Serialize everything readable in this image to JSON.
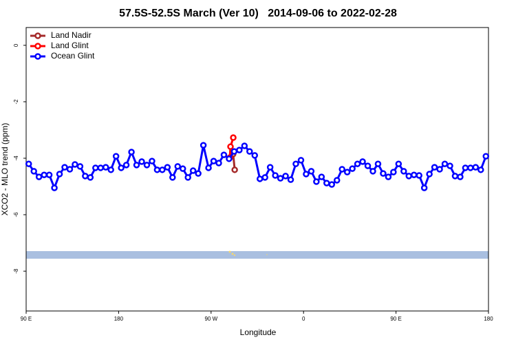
{
  "chart_data": {
    "type": "line",
    "title": "57.5S-52.5S March (Ver 10)   2014-09-06 to 2022-02-28",
    "x_label": "Longitude",
    "y_label": "XCO2 - MLO trend (ppm)",
    "xlim": [
      90,
      540
    ],
    "ylim": [
      -9.41,
      0.63
    ],
    "xticks": [
      {
        "value": 90,
        "label": "90 E"
      },
      {
        "value": 180,
        "label": "180"
      },
      {
        "value": 270,
        "label": "90 W"
      },
      {
        "value": 360,
        "label": "0"
      },
      {
        "value": 450,
        "label": "90 E"
      },
      {
        "value": 540,
        "label": "180"
      }
    ],
    "yticks": [
      0,
      -2,
      -4,
      -6,
      -8
    ],
    "legend": "top-left",
    "series": [
      {
        "name": "Land Nadir",
        "color": "#a52a2a",
        "x": [
          291.5,
          293
        ],
        "values": [
          -3.85,
          -4.41
        ]
      },
      {
        "name": "Land Glint",
        "color": "#ff0000",
        "x": [
          288.2,
          288.9,
          291.6
        ],
        "values": [
          -3.98,
          -3.59,
          -3.27
        ]
      },
      {
        "name": "Ocean Glint",
        "color": "#0000ff",
        "x": [
          92.5,
          97.5,
          102.5,
          107.5,
          112.5,
          117.5,
          122.5,
          127.5,
          132.5,
          137.5,
          142.5,
          147.5,
          152.5,
          157.5,
          162.5,
          167.5,
          172.5,
          177.5,
          182.5,
          187.5,
          192.5,
          197.5,
          202.5,
          207.5,
          212.5,
          217.5,
          222.5,
          227.5,
          232.5,
          237.5,
          242.5,
          247.5,
          252.5,
          257.5,
          262.5,
          267.5,
          272.5,
          277.5,
          282.5,
          287.5,
          292.5,
          297.5,
          302.5,
          307.5,
          312.5,
          317.5,
          322.5,
          327.5,
          332.5,
          337.5,
          342.5,
          347.5,
          352.5,
          357.5,
          362.5,
          367.5,
          372.5,
          377.5,
          382.5,
          387.5,
          392.5,
          397.5,
          402.5,
          407.5,
          412.5,
          417.5,
          422.5,
          427.5,
          432.5,
          437.5,
          442.5,
          447.5,
          452.5,
          457.5,
          462.5,
          467.5,
          472.5,
          477.5,
          482.5,
          487.5,
          492.5,
          497.5,
          502.5,
          507.5,
          512.5,
          517.5,
          522.5,
          527.5,
          532.5,
          537.5
        ],
        "values": [
          -4.2,
          -4.46,
          -4.66,
          -4.59,
          -4.59,
          -5.05,
          -4.56,
          -4.32,
          -4.39,
          -4.22,
          -4.29,
          -4.63,
          -4.68,
          -4.34,
          -4.34,
          -4.32,
          -4.41,
          -3.93,
          -4.34,
          -4.24,
          -3.78,
          -4.24,
          -4.12,
          -4.24,
          -4.1,
          -4.41,
          -4.41,
          -4.32,
          -4.68,
          -4.29,
          -4.37,
          -4.68,
          -4.44,
          -4.54,
          -3.54,
          -4.34,
          -4.1,
          -4.17,
          -3.88,
          -4.02,
          -3.76,
          -3.71,
          -3.56,
          -3.76,
          -3.9,
          -4.73,
          -4.68,
          -4.32,
          -4.61,
          -4.71,
          -4.63,
          -4.76,
          -4.2,
          -4.07,
          -4.56,
          -4.46,
          -4.83,
          -4.66,
          -4.88,
          -4.93,
          -4.78,
          -4.39,
          -4.49,
          -4.37,
          -4.2,
          -4.12,
          -4.27,
          -4.46,
          -4.2,
          -4.54,
          -4.66,
          -4.49,
          -4.2,
          -4.46,
          -4.63,
          -4.59,
          -4.61,
          -5.05,
          -4.56,
          -4.32,
          -4.39,
          -4.2,
          -4.27,
          -4.63,
          -4.66,
          -4.34,
          -4.34,
          -4.32,
          -4.41,
          -3.93
        ]
      }
    ]
  }
}
